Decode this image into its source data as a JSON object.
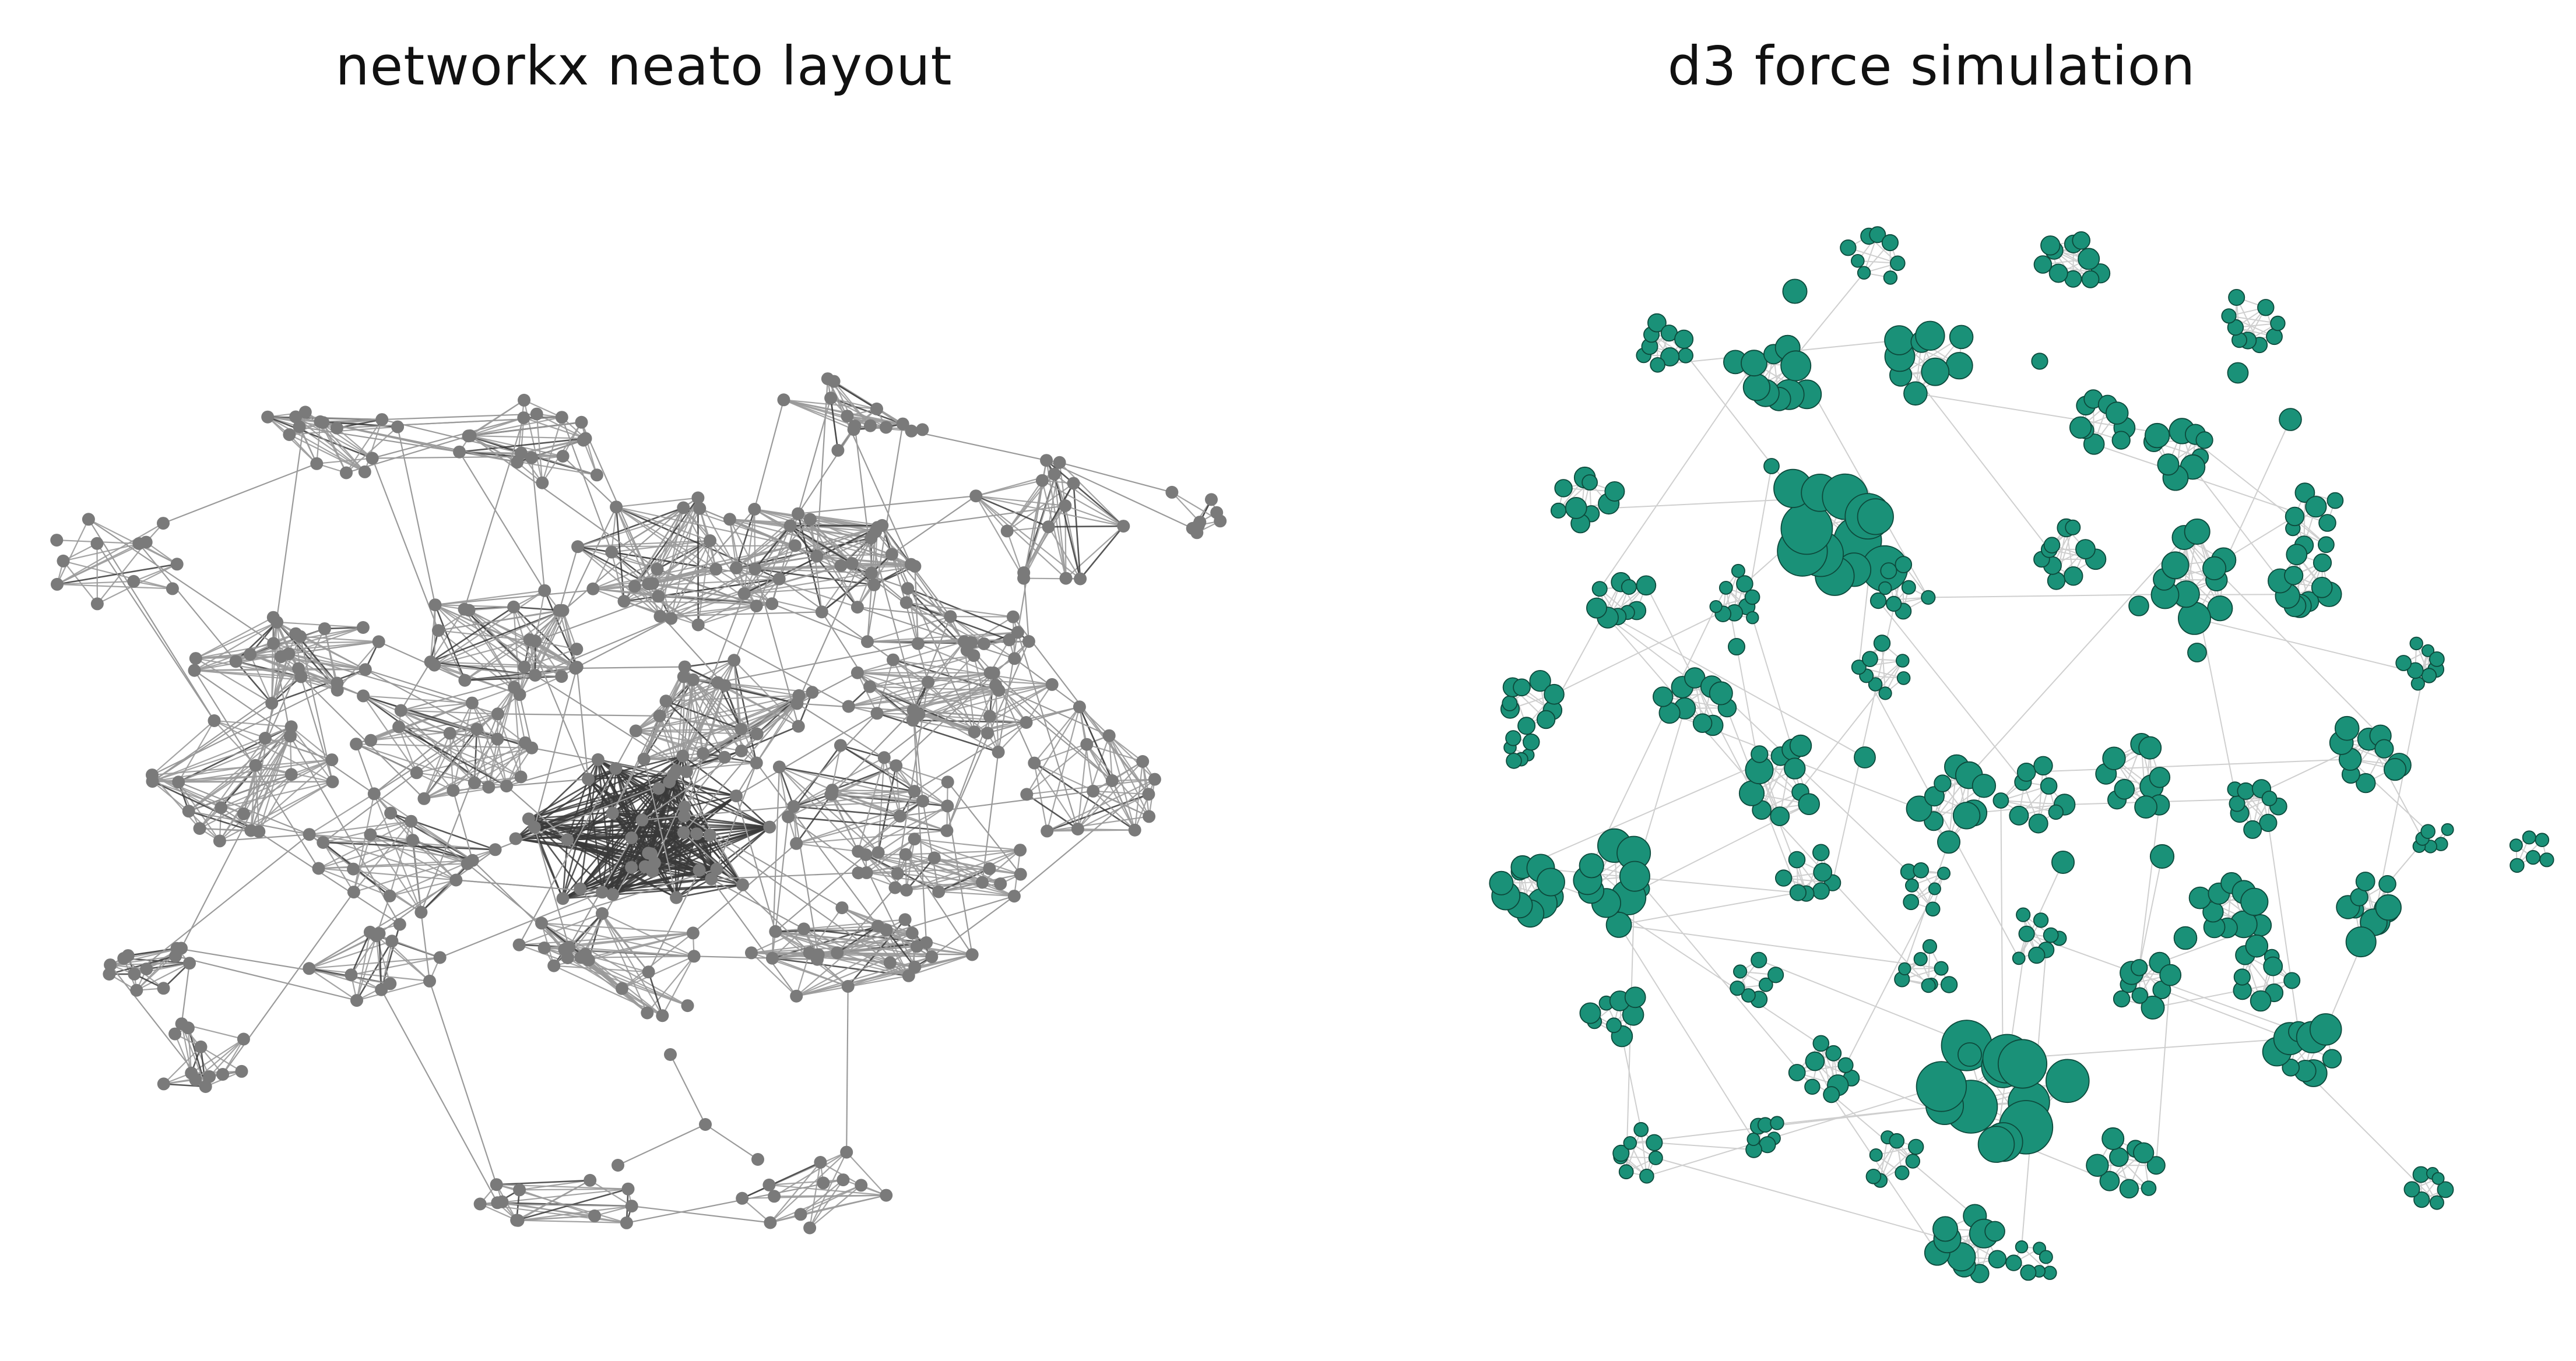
{
  "panels": {
    "left": {
      "title": "networkx neato layout",
      "node_color": "#7a7a7a",
      "edge_color": "#9a9a9a",
      "dense_edge_color": "#3a3a3a"
    },
    "right": {
      "title": "d3 force simulation",
      "node_color": "#1a9178",
      "node_stroke": "#0d4a3c",
      "edge_color": "#cfcfcf"
    }
  }
}
